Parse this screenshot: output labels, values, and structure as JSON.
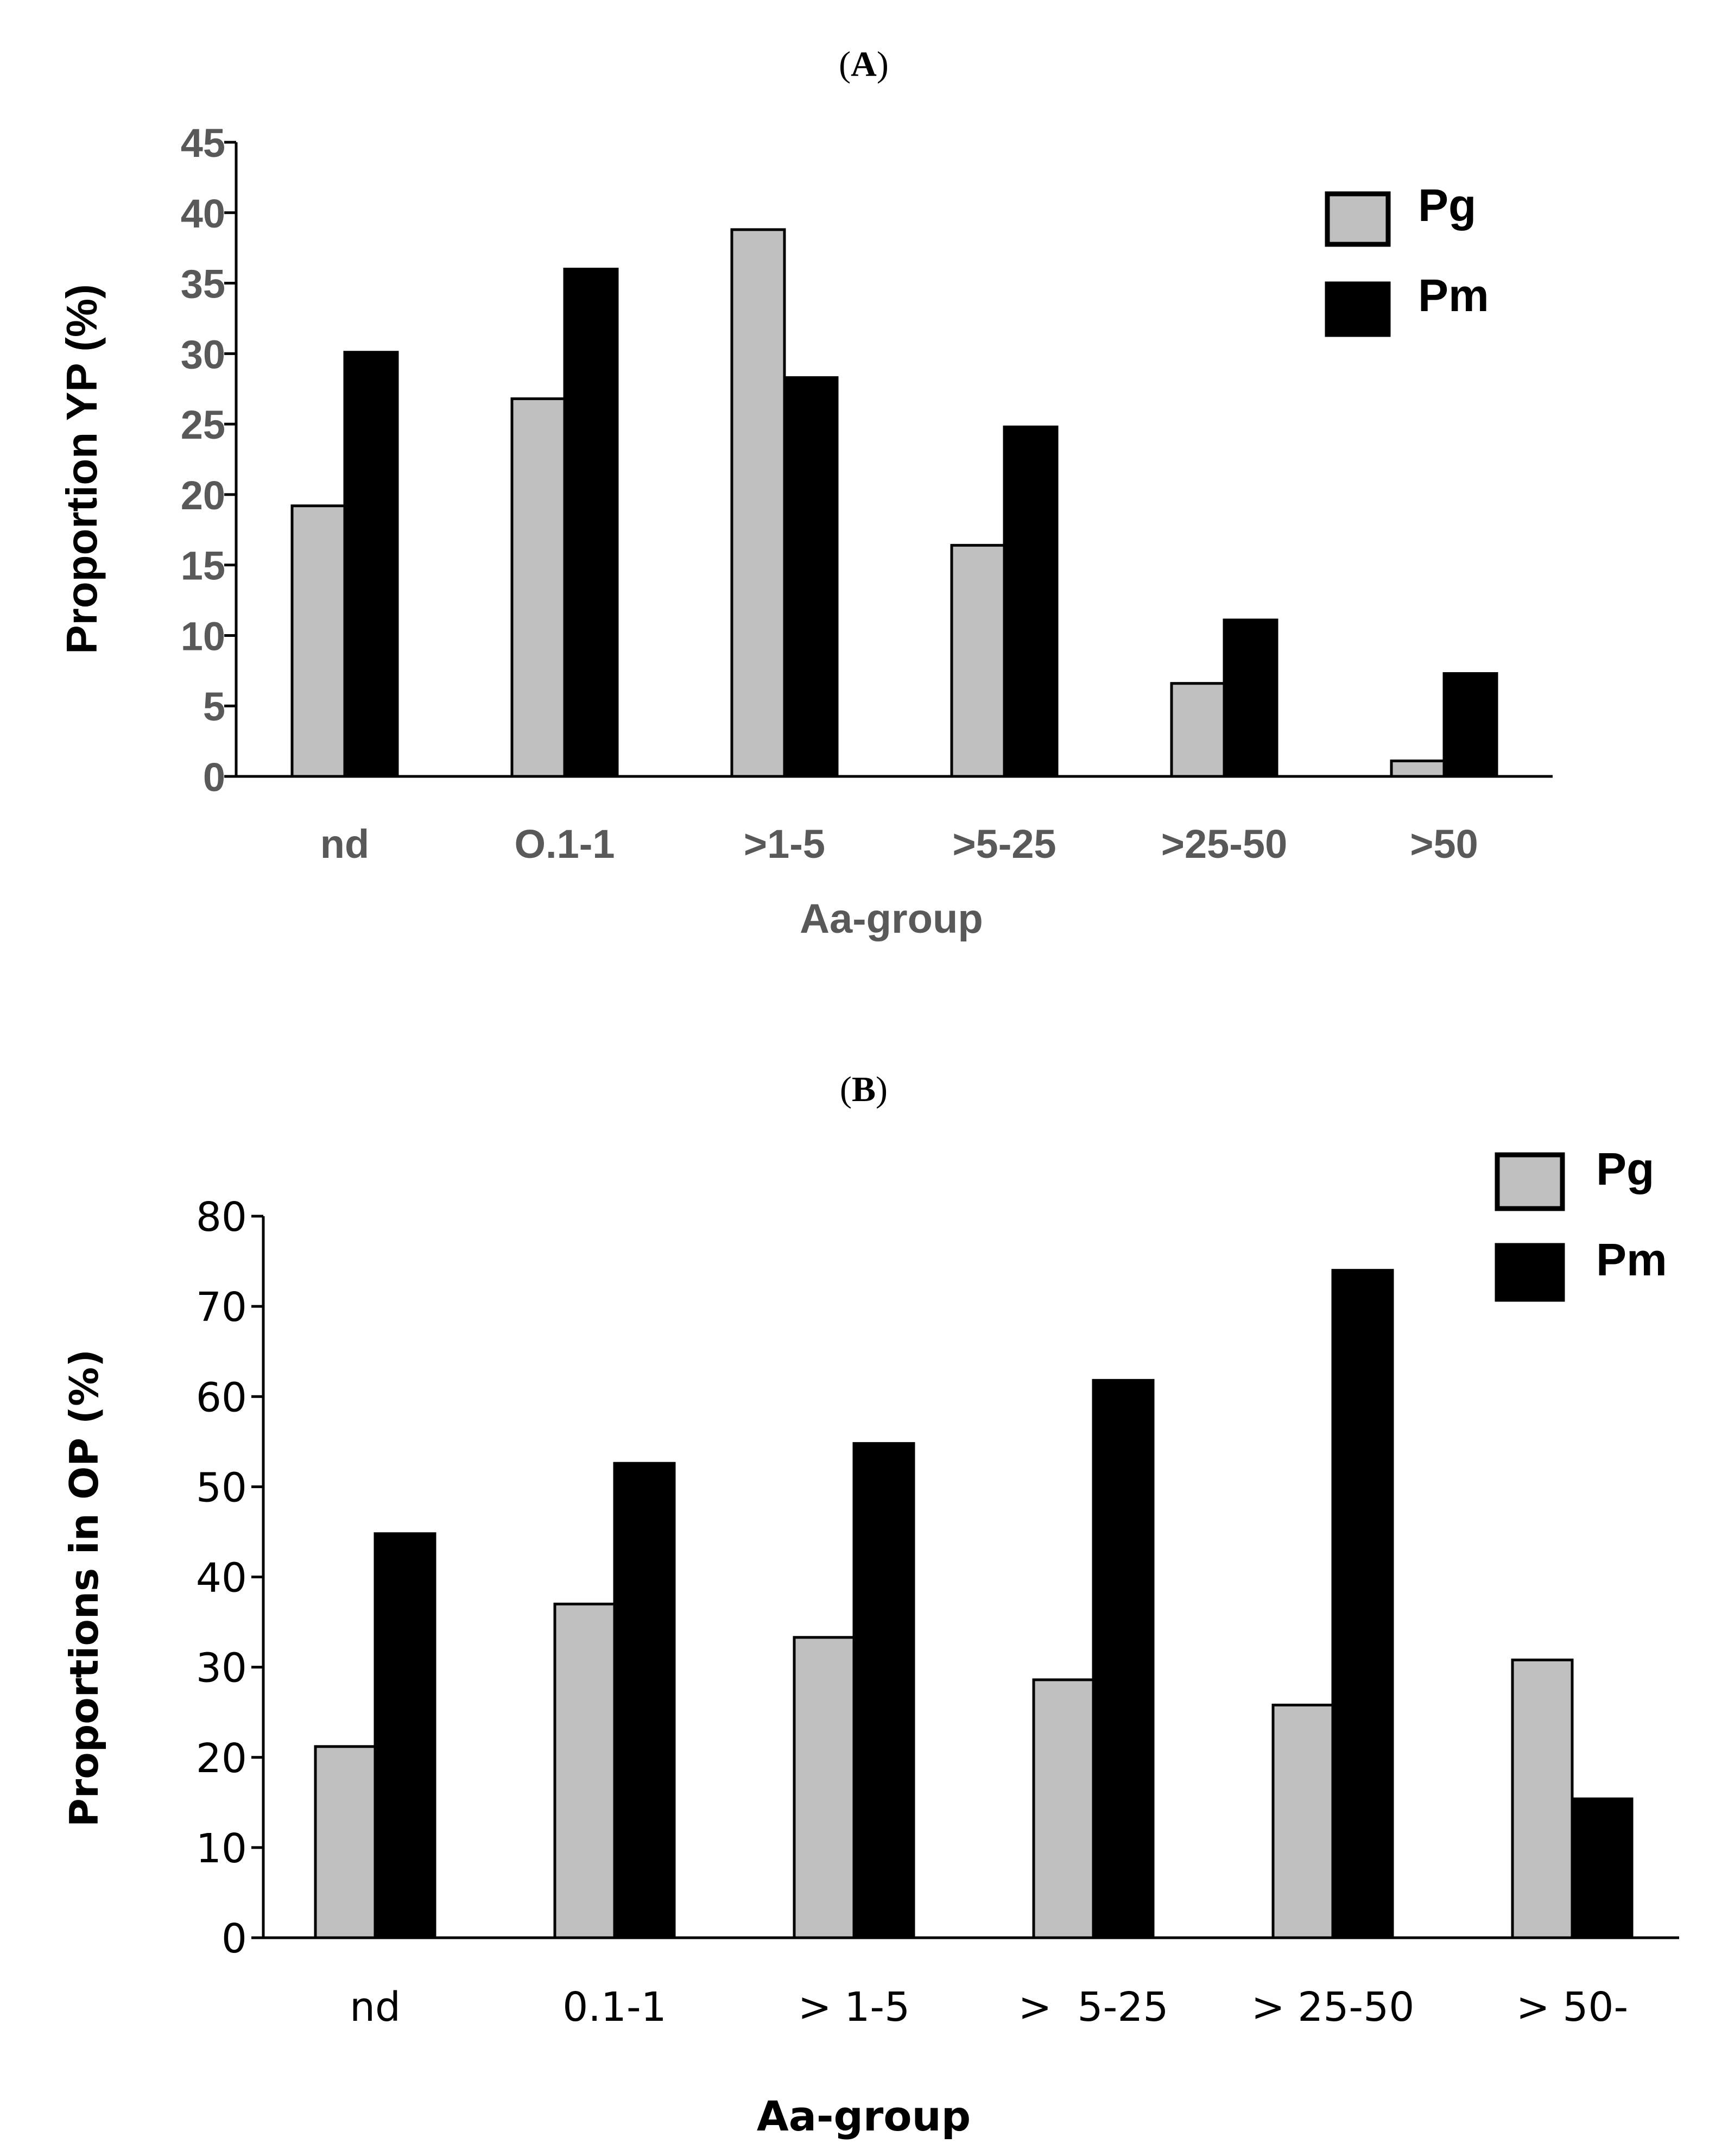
{
  "colors": {
    "pg": "#c0c0c0",
    "pm": "#000000",
    "axis": "#000000"
  },
  "chart_data": [
    {
      "panel": "A",
      "panel_label_open": "(",
      "panel_label_letter": "A",
      "panel_label_close": ")",
      "type": "bar",
      "title": "",
      "xlabel": "Aa-group",
      "ylabel": "Proportion YP (%)",
      "ylim": [
        0,
        45
      ],
      "yticks": [
        0,
        5,
        10,
        15,
        20,
        25,
        30,
        35,
        40,
        45
      ],
      "categories": [
        "nd",
        "O.1-1",
        ">1-5",
        ">5-25",
        ">25-50",
        ">50"
      ],
      "series": [
        {
          "name": "Pg",
          "values": [
            19.2,
            26.8,
            38.8,
            16.4,
            6.6,
            1.1
          ]
        },
        {
          "name": "Pm",
          "values": [
            30.1,
            36.0,
            28.3,
            24.8,
            11.1,
            7.3
          ]
        }
      ],
      "legend": [
        "Pg",
        "Pm"
      ],
      "legend_position": "top-right",
      "grid": false
    },
    {
      "panel": "B",
      "panel_label_open": "(",
      "panel_label_letter": "B",
      "panel_label_close": ")",
      "type": "bar",
      "title": "",
      "xlabel": "Aa-group",
      "ylabel": "Proportions in OP (%)",
      "ylim": [
        0,
        80
      ],
      "yticks": [
        0,
        10,
        20,
        30,
        40,
        50,
        60,
        70,
        80
      ],
      "categories": [
        "nd",
        "0.1-1",
        "> 1-5",
        ">  5-25",
        "> 25-50",
        "> 50-"
      ],
      "series": [
        {
          "name": "Pg",
          "values": [
            21.2,
            37.0,
            33.3,
            28.6,
            25.8,
            30.8
          ]
        },
        {
          "name": "Pm",
          "values": [
            44.8,
            52.6,
            54.8,
            61.8,
            74.0,
            15.4
          ]
        }
      ],
      "legend": [
        "Pg",
        "Pm"
      ],
      "legend_position": "top-right",
      "grid": false
    }
  ]
}
